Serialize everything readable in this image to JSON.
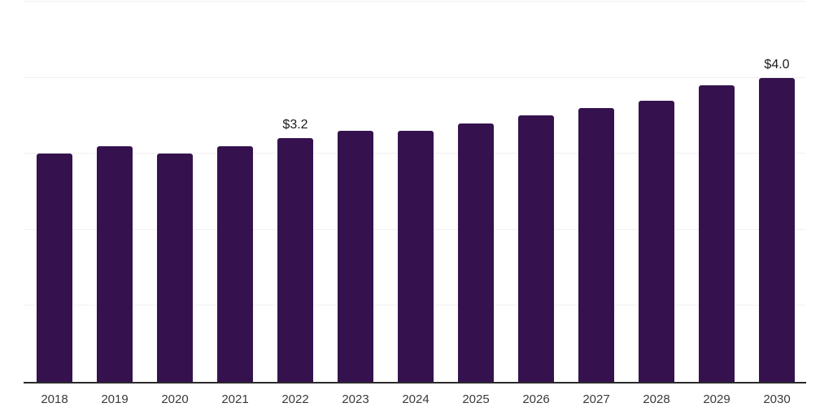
{
  "chart": {
    "background_color": "#ffffff",
    "bar_color": "#35124e",
    "grid_color": "#f0f0f0",
    "axis_color": "#2a2a2a",
    "tick_label_color": "#3a3a3a",
    "value_label_color": "#1a1a1a"
  },
  "chart_data": {
    "type": "bar",
    "categories": [
      "2018",
      "2019",
      "2020",
      "2021",
      "2022",
      "2023",
      "2024",
      "2025",
      "2026",
      "2027",
      "2028",
      "2029",
      "2030"
    ],
    "values": [
      3.0,
      3.1,
      3.0,
      3.1,
      3.2,
      3.3,
      3.3,
      3.4,
      3.5,
      3.6,
      3.7,
      3.9,
      4.0
    ],
    "point_labels": [
      "",
      "",
      "",
      "",
      "$3.2",
      "",
      "",
      "",
      "",
      "",
      "",
      "",
      "$4.0"
    ],
    "title": "",
    "xlabel": "",
    "ylabel": "",
    "ylim": [
      0,
      5
    ],
    "grid": "horizontal",
    "gridline_values": [
      1,
      2,
      3,
      4,
      5
    ],
    "legend": "none",
    "y_axis_tick_labels_visible": false,
    "x_axis_line_visible": true
  }
}
